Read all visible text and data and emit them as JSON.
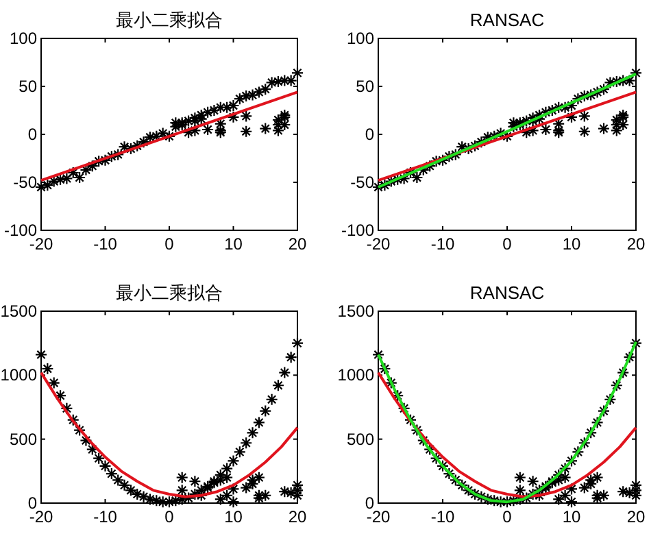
{
  "chart_data": [
    {
      "type": "scatter",
      "title": "最小二乘拟合",
      "xlim": [
        -20,
        20
      ],
      "ylim": [
        -100,
        100
      ],
      "xticks": [
        -20,
        -10,
        0,
        10,
        20
      ],
      "yticks": [
        -100,
        -50,
        0,
        50,
        100
      ],
      "series": [
        {
          "marker": "cross",
          "color": "#000000",
          "x": [
            -20,
            -19,
            -18,
            -17,
            -16,
            -15,
            -14,
            -13,
            -12,
            -11,
            -10,
            -9,
            -8,
            -7,
            -6,
            -5,
            -4,
            -3,
            -2,
            -1,
            0,
            1,
            2,
            3,
            4,
            5,
            6,
            7,
            8,
            9,
            10,
            11,
            12,
            13,
            14,
            15,
            16,
            17,
            18,
            19,
            20,
            1,
            2,
            3,
            4,
            4,
            5,
            6,
            8,
            8,
            8,
            10,
            12,
            12,
            15,
            17,
            17,
            18,
            18,
            18,
            17
          ],
          "values": [
            -55,
            -53,
            -49,
            -47,
            -46,
            -40,
            -45,
            -37,
            -33,
            -28,
            -27,
            -23,
            -21,
            -13,
            -15,
            -12,
            -8,
            -3,
            -2,
            1,
            -2,
            8,
            10,
            14,
            17,
            20,
            23,
            25,
            28,
            28,
            30,
            37,
            40,
            41,
            44,
            47,
            54,
            55,
            56,
            56,
            64,
            12,
            12,
            2,
            4,
            14,
            16,
            5,
            4,
            2,
            11,
            18,
            19,
            3,
            6,
            4,
            15,
            10,
            18,
            20,
            10
          ]
        },
        {
          "type": "line",
          "marker": "none",
          "color": "#e0141e",
          "x": [
            -20,
            0,
            20
          ],
          "values": [
            -48,
            -2,
            44
          ]
        }
      ]
    },
    {
      "type": "scatter",
      "title": "RANSAC",
      "xlim": [
        -20,
        20
      ],
      "ylim": [
        -100,
        100
      ],
      "xticks": [
        -20,
        -10,
        0,
        10,
        20
      ],
      "yticks": [
        -100,
        -50,
        0,
        50,
        100
      ],
      "series": [
        {
          "marker": "cross",
          "color": "#000000",
          "x": [
            -20,
            -19,
            -18,
            -17,
            -16,
            -15,
            -14,
            -13,
            -12,
            -11,
            -10,
            -9,
            -8,
            -7,
            -6,
            -5,
            -4,
            -3,
            -2,
            -1,
            0,
            1,
            2,
            3,
            4,
            5,
            6,
            7,
            8,
            9,
            10,
            11,
            12,
            13,
            14,
            15,
            16,
            17,
            18,
            19,
            20,
            1,
            2,
            3,
            4,
            4,
            5,
            6,
            8,
            8,
            8,
            10,
            12,
            12,
            15,
            17,
            17,
            18,
            18,
            18,
            17
          ],
          "values": [
            -55,
            -53,
            -49,
            -47,
            -46,
            -40,
            -45,
            -37,
            -33,
            -28,
            -27,
            -23,
            -21,
            -13,
            -15,
            -12,
            -8,
            -3,
            -2,
            1,
            -2,
            8,
            10,
            14,
            17,
            20,
            23,
            25,
            28,
            28,
            30,
            37,
            40,
            41,
            44,
            47,
            54,
            55,
            56,
            56,
            64,
            12,
            12,
            2,
            4,
            14,
            16,
            5,
            4,
            2,
            11,
            18,
            19,
            3,
            6,
            4,
            15,
            10,
            18,
            20,
            10
          ]
        },
        {
          "type": "line",
          "marker": "none",
          "color": "#e0141e",
          "x": [
            -20,
            0,
            20
          ],
          "values": [
            -48,
            -2,
            44
          ]
        },
        {
          "type": "line",
          "marker": "none",
          "color": "#22dd22",
          "x": [
            -20,
            0,
            20
          ],
          "values": [
            -55,
            3,
            63
          ]
        }
      ]
    },
    {
      "type": "scatter",
      "title": "最小二乘拟合",
      "xlim": [
        -20,
        20
      ],
      "ylim": [
        0,
        1500
      ],
      "xticks": [
        -20,
        -10,
        0,
        10,
        20
      ],
      "yticks": [
        0,
        500,
        1000,
        1500
      ],
      "series": [
        {
          "marker": "cross",
          "color": "#000000",
          "x": [
            -20,
            -19,
            -18,
            -17,
            -16,
            -15,
            -14,
            -13,
            -12,
            -11,
            -10,
            -9,
            -8,
            -7,
            -6,
            -5,
            -4,
            -3,
            -2,
            -1,
            0,
            1,
            2,
            3,
            4,
            5,
            6,
            7,
            8,
            9,
            10,
            11,
            12,
            13,
            14,
            15,
            16,
            17,
            18,
            19,
            20,
            2,
            2,
            4,
            5,
            6,
            7,
            8,
            9,
            9,
            10,
            10,
            12,
            13,
            13,
            14,
            14,
            14,
            15,
            18,
            19,
            20,
            20,
            20,
            8
          ],
          "values": [
            1160,
            1050,
            940,
            840,
            740,
            650,
            570,
            490,
            420,
            350,
            290,
            230,
            180,
            140,
            100,
            70,
            50,
            30,
            20,
            10,
            10,
            20,
            30,
            40,
            70,
            100,
            130,
            170,
            220,
            270,
            330,
            400,
            470,
            550,
            630,
            720,
            810,
            920,
            1020,
            1140,
            1250,
            200,
            100,
            170,
            60,
            120,
            160,
            180,
            200,
            60,
            110,
            10,
            120,
            150,
            180,
            200,
            60,
            40,
            60,
            90,
            80,
            140,
            100,
            60,
            30
          ]
        },
        {
          "type": "line",
          "marker": "none",
          "color": "#e0141e",
          "x": [
            -20,
            -17.5,
            -15,
            -12.5,
            -10,
            -7.5,
            -5,
            -2.5,
            0,
            2.5,
            5,
            7.5,
            10,
            12.5,
            15,
            17.5,
            20
          ],
          "values": [
            1020,
            820,
            640,
            490,
            360,
            250,
            170,
            100,
            70,
            50,
            60,
            90,
            140,
            220,
            320,
            440,
            590
          ]
        }
      ]
    },
    {
      "type": "scatter",
      "title": "RANSAC",
      "xlim": [
        -20,
        20
      ],
      "ylim": [
        0,
        1500
      ],
      "xticks": [
        -20,
        -10,
        0,
        10,
        20
      ],
      "yticks": [
        0,
        500,
        1000,
        1500
      ],
      "series": [
        {
          "marker": "cross",
          "color": "#000000",
          "x": [
            -20,
            -19,
            -18,
            -17,
            -16,
            -15,
            -14,
            -13,
            -12,
            -11,
            -10,
            -9,
            -8,
            -7,
            -6,
            -5,
            -4,
            -3,
            -2,
            -1,
            0,
            1,
            2,
            3,
            4,
            5,
            6,
            7,
            8,
            9,
            10,
            11,
            12,
            13,
            14,
            15,
            16,
            17,
            18,
            19,
            20,
            2,
            2,
            4,
            5,
            6,
            7,
            8,
            9,
            9,
            10,
            10,
            12,
            13,
            13,
            14,
            14,
            14,
            15,
            18,
            19,
            20,
            20,
            20,
            8
          ],
          "values": [
            1160,
            1050,
            940,
            840,
            740,
            650,
            570,
            490,
            420,
            350,
            290,
            230,
            180,
            140,
            100,
            70,
            50,
            30,
            20,
            10,
            10,
            20,
            30,
            40,
            70,
            100,
            130,
            170,
            220,
            270,
            330,
            400,
            470,
            550,
            630,
            720,
            810,
            920,
            1020,
            1140,
            1250,
            200,
            100,
            170,
            60,
            120,
            160,
            180,
            200,
            60,
            110,
            10,
            120,
            150,
            180,
            200,
            60,
            40,
            60,
            90,
            80,
            140,
            100,
            60,
            30
          ]
        },
        {
          "type": "line",
          "marker": "none",
          "color": "#e0141e",
          "x": [
            -20,
            -17.5,
            -15,
            -12.5,
            -10,
            -7.5,
            -5,
            -2.5,
            0,
            2.5,
            5,
            7.5,
            10,
            12.5,
            15,
            17.5,
            20
          ],
          "values": [
            1020,
            820,
            640,
            490,
            360,
            250,
            170,
            100,
            70,
            50,
            60,
            90,
            140,
            220,
            320,
            440,
            590
          ]
        },
        {
          "type": "line",
          "marker": "none",
          "color": "#22dd22",
          "x": [
            -20,
            -17.5,
            -15,
            -12.5,
            -10,
            -7.5,
            -5,
            -2.5,
            0,
            2.5,
            5,
            7.5,
            10,
            12.5,
            15,
            17.5,
            20
          ],
          "values": [
            1160,
            890,
            650,
            450,
            290,
            160,
            70,
            20,
            10,
            30,
            100,
            200,
            330,
            510,
            720,
            970,
            1260
          ]
        }
      ]
    }
  ]
}
